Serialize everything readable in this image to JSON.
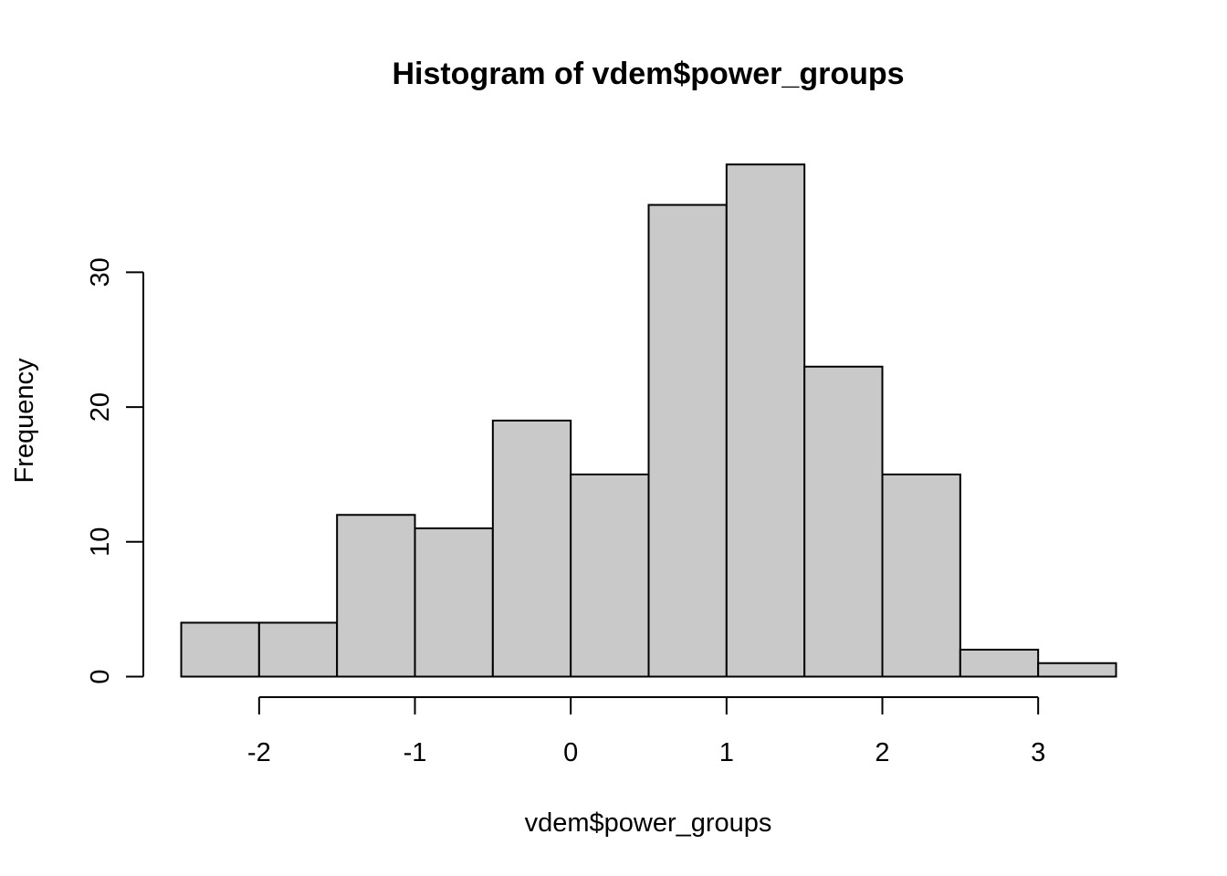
{
  "chart_data": {
    "type": "bar",
    "title": "Histogram of vdem$power_groups",
    "xlabel": "vdem$power_groups",
    "ylabel": "Frequency",
    "bar_color": "#c9c9c9",
    "bins": [
      {
        "x0": -2.5,
        "x1": -2.0,
        "count": 4
      },
      {
        "x0": -2.0,
        "x1": -1.5,
        "count": 4
      },
      {
        "x0": -1.5,
        "x1": -1.0,
        "count": 12
      },
      {
        "x0": -1.0,
        "x1": -0.5,
        "count": 11
      },
      {
        "x0": -0.5,
        "x1": 0.0,
        "count": 19
      },
      {
        "x0": 0.0,
        "x1": 0.5,
        "count": 15
      },
      {
        "x0": 0.5,
        "x1": 1.0,
        "count": 35
      },
      {
        "x0": 1.0,
        "x1": 1.5,
        "count": 38
      },
      {
        "x0": 1.5,
        "x1": 2.0,
        "count": 23
      },
      {
        "x0": 2.0,
        "x1": 2.5,
        "count": 15
      },
      {
        "x0": 2.5,
        "x1": 3.0,
        "count": 2
      },
      {
        "x0": 3.0,
        "x1": 3.5,
        "count": 1
      }
    ],
    "x_ticks": [
      {
        "value": -2,
        "label": "-2"
      },
      {
        "value": -1,
        "label": "-1"
      },
      {
        "value": 0,
        "label": "0"
      },
      {
        "value": 1,
        "label": "1"
      },
      {
        "value": 2,
        "label": "2"
      },
      {
        "value": 3,
        "label": "3"
      }
    ],
    "y_ticks": [
      {
        "value": 0,
        "label": "0"
      },
      {
        "value": 10,
        "label": "10"
      },
      {
        "value": 20,
        "label": "20"
      },
      {
        "value": 30,
        "label": "30"
      }
    ],
    "xlim": [
      -2.5,
      3.5
    ],
    "ylim": [
      0,
      38
    ],
    "grid": false
  }
}
